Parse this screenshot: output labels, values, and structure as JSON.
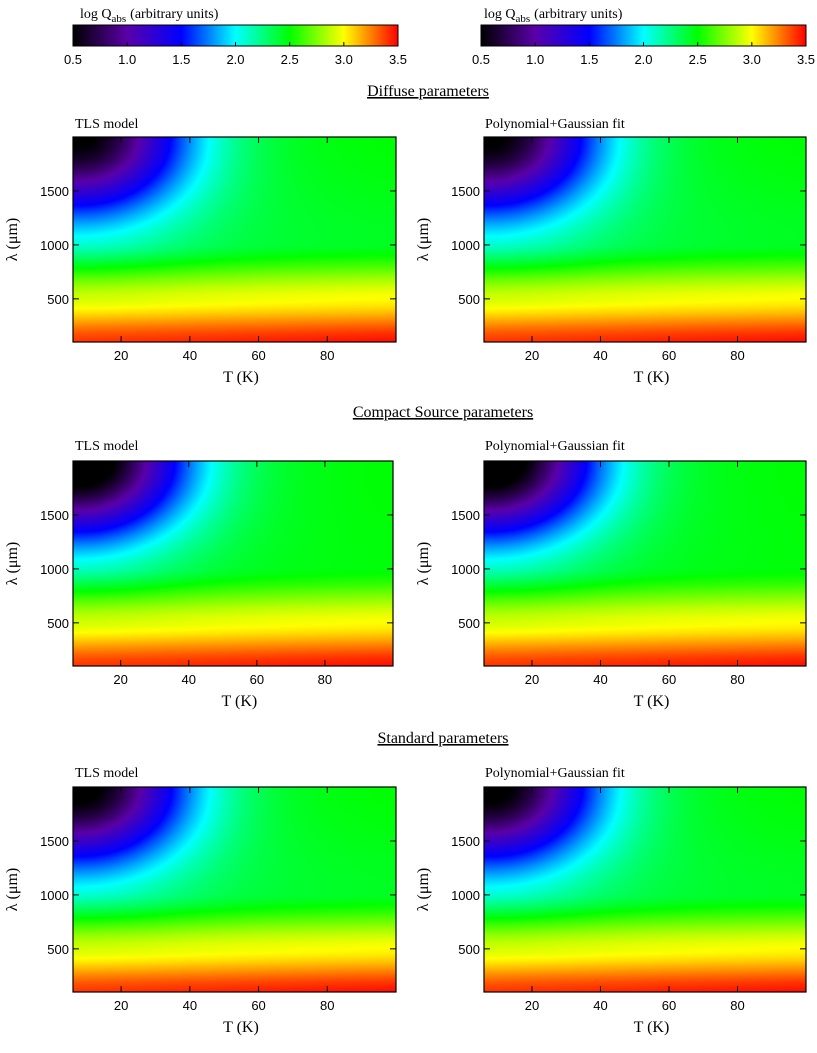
{
  "colorbar": {
    "label_prefix": "log Q",
    "label_sub": "abs",
    "label_suffix": "(arbitrary units)",
    "ticks": [
      "0.5",
      "1.0",
      "1.5",
      "2.0",
      "2.5",
      "3.0",
      "3.5"
    ],
    "range": [
      0.5,
      3.5
    ],
    "colormap": [
      "#000000",
      "#5a00a8",
      "#0000ff",
      "#00ffff",
      "#00ff00",
      "#ffff00",
      "#ff0000"
    ]
  },
  "sections": [
    {
      "title": "Diffuse parameters"
    },
    {
      "title": "Compact Source parameters"
    },
    {
      "title": "Standard parameters"
    }
  ],
  "panel_titles": [
    "TLS model",
    "Polynomial+Gaussian fit"
  ],
  "axes": {
    "xlabel": "T (K)",
    "ylabel": "λ (μm)",
    "xticks": [
      "20",
      "40",
      "60",
      "80"
    ],
    "yticks": [
      "500",
      "1000",
      "1500"
    ]
  },
  "chart_data": [
    {
      "type": "heatmap",
      "section": "Diffuse parameters",
      "title": "TLS model",
      "xlabel": "T (K)",
      "ylabel": "λ (μm)",
      "xlim": [
        6,
        100
      ],
      "ylim": [
        100,
        2000
      ],
      "zlabel": "log Q abs (arbitrary units)",
      "zlim": [
        0.5,
        3.5
      ],
      "z_at_T10_lambda2000": 0.7,
      "z_at_T100_lambda2000": 2.5,
      "z_at_lambda1000": 2.4,
      "z_at_lambda500": 2.95,
      "z_at_lambda100": 3.4
    },
    {
      "type": "heatmap",
      "section": "Diffuse parameters",
      "title": "Polynomial+Gaussian fit",
      "xlabel": "T (K)",
      "ylabel": "λ (μm)",
      "xlim": [
        6,
        100
      ],
      "ylim": [
        100,
        2000
      ],
      "zlabel": "log Q abs (arbitrary units)",
      "zlim": [
        0.5,
        3.5
      ],
      "z_at_T10_lambda2000": 0.7,
      "z_at_T100_lambda2000": 2.5,
      "z_at_lambda1000": 2.4,
      "z_at_lambda500": 2.95,
      "z_at_lambda100": 3.4
    },
    {
      "type": "heatmap",
      "section": "Compact Source parameters",
      "title": "TLS model",
      "xlabel": "T (K)",
      "ylabel": "λ (μm)",
      "xlim": [
        6,
        100
      ],
      "ylim": [
        100,
        2000
      ],
      "zlabel": "log Q abs (arbitrary units)",
      "zlim": [
        0.5,
        3.5
      ],
      "z_at_T10_lambda2000": 0.5,
      "z_at_T100_lambda2000": 2.5,
      "z_at_lambda1000": 2.45,
      "z_at_lambda500": 2.95,
      "z_at_lambda100": 3.4
    },
    {
      "type": "heatmap",
      "section": "Compact Source parameters",
      "title": "Polynomial+Gaussian fit",
      "xlabel": "T (K)",
      "ylabel": "λ (μm)",
      "xlim": [
        6,
        100
      ],
      "ylim": [
        100,
        2000
      ],
      "zlabel": "log Q abs (arbitrary units)",
      "zlim": [
        0.5,
        3.5
      ],
      "z_at_T10_lambda2000": 0.5,
      "z_at_T100_lambda2000": 2.5,
      "z_at_lambda1000": 2.45,
      "z_at_lambda500": 2.95,
      "z_at_lambda100": 3.4
    },
    {
      "type": "heatmap",
      "section": "Standard parameters",
      "title": "TLS model",
      "xlabel": "T (K)",
      "ylabel": "λ (μm)",
      "xlim": [
        6,
        100
      ],
      "ylim": [
        100,
        2000
      ],
      "zlabel": "log Q abs (arbitrary units)",
      "zlim": [
        0.5,
        3.5
      ],
      "z_at_T10_lambda2000": 0.65,
      "z_at_T100_lambda2000": 2.5,
      "z_at_lambda1000": 2.4,
      "z_at_lambda500": 2.95,
      "z_at_lambda100": 3.4
    },
    {
      "type": "heatmap",
      "section": "Standard parameters",
      "title": "Polynomial+Gaussian fit",
      "xlabel": "T (K)",
      "ylabel": "λ (μm)",
      "xlim": [
        6,
        100
      ],
      "ylim": [
        100,
        2000
      ],
      "zlabel": "log Q abs (arbitrary units)",
      "zlim": [
        0.5,
        3.5
      ],
      "z_at_T10_lambda2000": 0.65,
      "z_at_T100_lambda2000": 2.5,
      "z_at_lambda1000": 2.4,
      "z_at_lambda500": 2.95,
      "z_at_lambda100": 3.4
    }
  ]
}
